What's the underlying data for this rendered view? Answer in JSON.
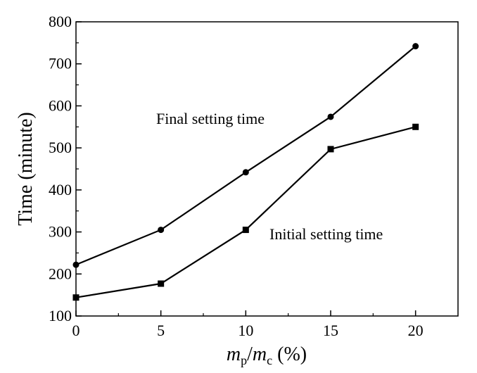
{
  "chart_data": {
    "type": "line",
    "x": [
      0,
      5,
      10,
      15,
      20
    ],
    "series": [
      {
        "name": "Final setting time",
        "marker": "circle",
        "values": [
          222,
          305,
          442,
          574,
          742
        ]
      },
      {
        "name": "Initial setting time",
        "marker": "square",
        "values": [
          144,
          177,
          305,
          497,
          550
        ]
      }
    ],
    "xlim": [
      0,
      22.5
    ],
    "ylim": [
      100,
      800
    ],
    "xticks": [
      0,
      5,
      10,
      15,
      20
    ],
    "yticks": [
      100,
      200,
      300,
      400,
      500,
      600,
      700,
      800
    ],
    "xlabel_parts": {
      "m1": "m",
      "s1": "p",
      "slash": "/",
      "m2": "m",
      "s2": "c",
      "unit": " (%)"
    },
    "ylabel": "Time (minute)",
    "annotations": {
      "final": {
        "text": "Final setting time"
      },
      "initial": {
        "text": "Initial setting time"
      }
    },
    "grid": false,
    "legend": "none"
  }
}
